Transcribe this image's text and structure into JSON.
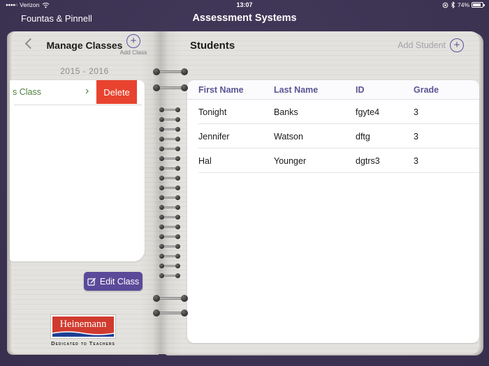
{
  "status_bar": {
    "signal_dots": "●●●●○",
    "carrier": "Verizon",
    "time": "13:07",
    "battery_percent": "74%"
  },
  "nav": {
    "back_label": "Fountas & Pinnell",
    "title": "Assessment Systems"
  },
  "icons": {
    "plus": "+",
    "chevron_right": "›"
  },
  "left_panel": {
    "title": "Manage Classes",
    "add_class_label": "Add Class",
    "year": "2015 - 2016",
    "class_row": {
      "name": "s Class",
      "delete_label": "Delete"
    },
    "edit_class_label": "Edit Class",
    "logo": {
      "name": "Heinemann",
      "tagline": "Dedicated to Teachers"
    }
  },
  "right_panel": {
    "title": "Students",
    "add_student_label": "Add Student",
    "table": {
      "headers": [
        "First Name",
        "Last Name",
        "ID",
        "Grade"
      ],
      "rows": [
        {
          "first": "Tonight",
          "last": "Banks",
          "id": "fgyte4",
          "grade": "3"
        },
        {
          "first": "Jennifer",
          "last": "Watson",
          "id": "dftg",
          "grade": "3"
        },
        {
          "first": "Hal",
          "last": "Younger",
          "id": "dgtrs3",
          "grade": "3"
        }
      ]
    }
  },
  "colors": {
    "background_purple": "#3d3355",
    "accent_purple": "#5a4a99",
    "delete_red": "#e8432e",
    "table_header_text": "#5a5593",
    "class_name_green": "#4e7d3c",
    "logo_red": "#d13a2e",
    "logo_blue": "#1c3e94"
  }
}
